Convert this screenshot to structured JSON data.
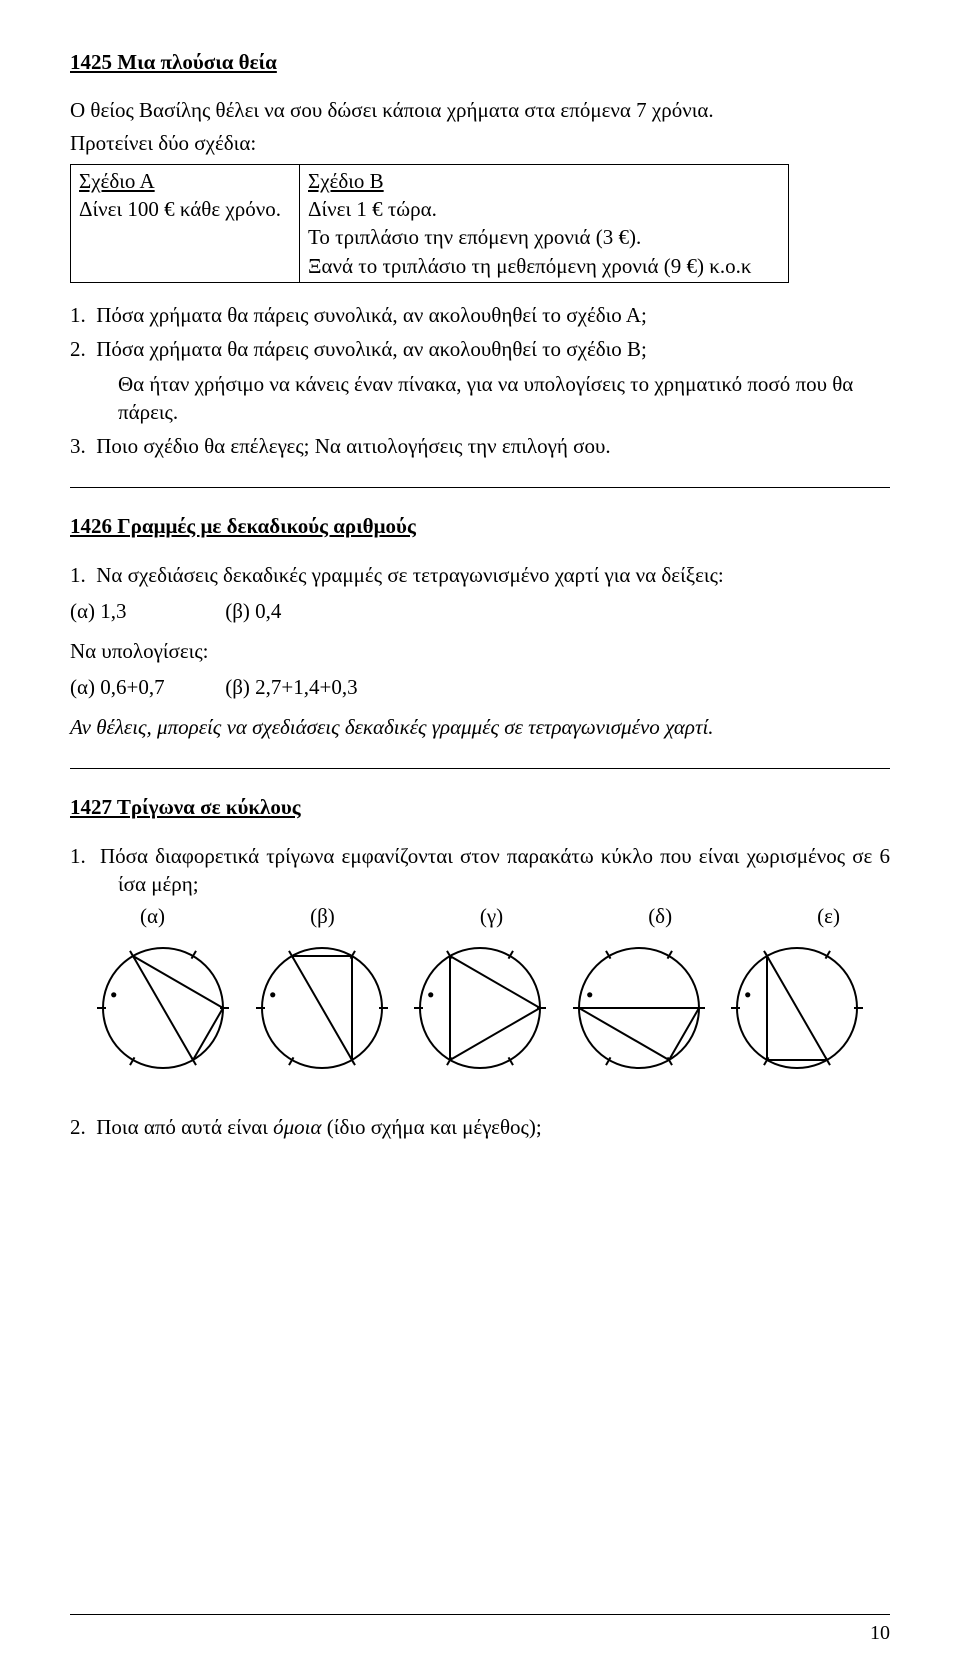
{
  "page_number": "10",
  "p1425": {
    "title": "1425 Μια πλούσια θεία",
    "intro1": "Ο θείος Βασίλης θέλει να σου δώσει κάποια χρήματα στα επόμενα 7 χρόνια.",
    "intro2": "Προτείνει δύο σχέδια:",
    "table": {
      "a_head": "Σχέδιο Α",
      "a_row": "Δίνει 100 € κάθε χρόνο.",
      "b_head": "Σχέδιο Β",
      "b_row1": "Δίνει 1 € τώρα.",
      "b_row2": "Το τριπλάσιο την επόμενη χρονιά (3 €).",
      "b_row3": "Ξανά το τριπλάσιο τη μεθεπόμενη χρονιά (9 €) κ.ο.κ"
    },
    "q1": "1.  Πόσα χρήματα θα πάρεις συνολικά, αν ακολουθηθεί το σχέδιο Α;",
    "q2a": "2.  Πόσα χρήματα θα πάρεις συνολικά, αν ακολουθηθεί το σχέδιο Β;",
    "q2b": "Θα ήταν χρήσιμο να κάνεις έναν πίνακα, για να υπολογίσεις το χρηματικό ποσό που θα πάρεις.",
    "q3": "3.  Ποιο σχέδιο θα επέλεγες; Να αιτιολογήσεις την επιλογή σου."
  },
  "p1426": {
    "title": "1426 Γραμμές με δεκαδικούς αριθμούς",
    "q1": "1.  Να σχεδιάσεις δεκαδικές γραμμές σε τετραγωνισμένο χαρτί για να δείξεις:",
    "pair1a": "(α) 1,3",
    "pair1b": "(β) 0,4",
    "calc_intro": "Να υπολογίσεις:",
    "pair2a": "(α) 0,6+0,7",
    "pair2b": "(β) 2,7+1,4+0,3",
    "note": "Αν θέλεις, μπορείς να σχεδιάσεις δεκαδικές γραμμές σε τετραγωνισμένο χαρτί."
  },
  "p1427": {
    "title": "1427 Τρίγωνα σε κύκλους",
    "q1": "1.  Πόσα διαφορετικά τρίγωνα εμφανίζονται στον παρακάτω κύκλο που είναι χωρισμένος σε 6 ίσα μέρη;",
    "labels": [
      "(α)",
      "(β)",
      "(γ)",
      "(δ)",
      "(ε)"
    ],
    "q2_pre": "2.  Ποια από αυτά είναι ",
    "q2_em": "όμοια",
    "q2_post": " (ίδιο σχήμα και μέγεθος);"
  },
  "svg": {
    "stroke": "#000000",
    "stroke_width": 2,
    "circle_r": 60,
    "view": 150,
    "tick_len_out": 6,
    "tick_len_in": 3,
    "dot_angle_deg": 285
  }
}
